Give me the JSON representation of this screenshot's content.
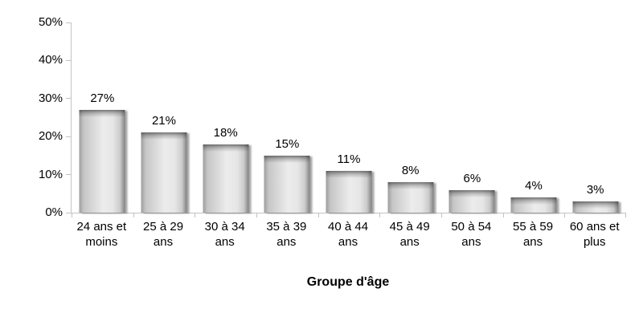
{
  "page": {
    "background": "#ffffff"
  },
  "chart_data": {
    "type": "bar",
    "title": "",
    "xlabel": "Groupe d'âge",
    "ylabel": "",
    "categories": [
      "24 ans et moins",
      "25 à 29 ans",
      "30 à 34 ans",
      "35 à 39 ans",
      "40 à 44 ans",
      "45 à 49 ans",
      "50 à 54 ans",
      "55 à 59 ans",
      "60 ans et plus"
    ],
    "category_lines": [
      [
        "24 ans et",
        "moins"
      ],
      [
        "25 à 29",
        "ans"
      ],
      [
        "30 à 34",
        "ans"
      ],
      [
        "35 à 39",
        "ans"
      ],
      [
        "40 à 44",
        "ans"
      ],
      [
        "45 à 49",
        "ans"
      ],
      [
        "50 à 54",
        "ans"
      ],
      [
        "55 à 59",
        "ans"
      ],
      [
        "60 ans et",
        "plus"
      ]
    ],
    "values": [
      27,
      21,
      18,
      15,
      11,
      8,
      6,
      4,
      3
    ],
    "value_labels": [
      "27%",
      "21%",
      "18%",
      "15%",
      "11%",
      "8%",
      "6%",
      "4%",
      "3%"
    ],
    "ylim": [
      0,
      50
    ],
    "ytick_step": 10,
    "ytick_labels": [
      "0%",
      "10%",
      "20%",
      "30%",
      "40%",
      "50%"
    ],
    "grid": false,
    "legend": "none",
    "colors": {
      "bar_light": "#ececec",
      "bar_dark": "#9d9d9d",
      "axis": "#c3c3c3",
      "text": "#000000",
      "background": "#ffffff"
    }
  }
}
